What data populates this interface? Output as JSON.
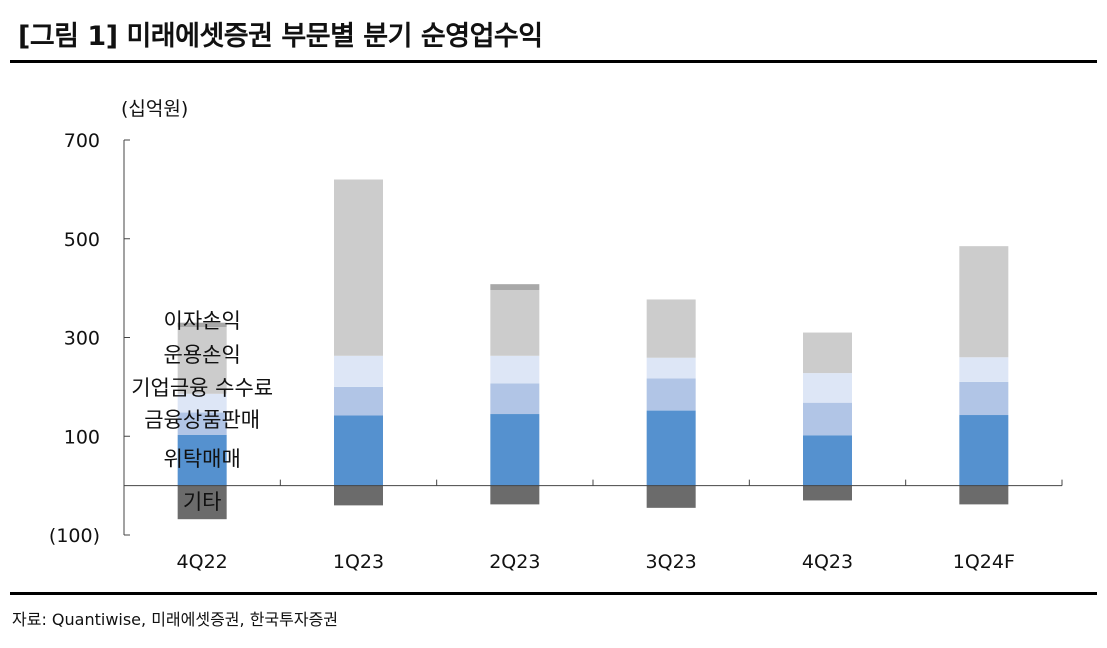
{
  "title": "[그림 1] 미래에셋증권 부문별 분기 순영업수익",
  "source": "자료: Quantiwise, 미래에셋증권, 한국투자증권",
  "chart_data": {
    "type": "bar",
    "stacked": true,
    "unit_label": "(십억원)",
    "categories": [
      "4Q22",
      "1Q23",
      "2Q23",
      "3Q23",
      "4Q23",
      "1Q24F"
    ],
    "yticks": [
      700,
      500,
      300,
      100,
      -100
    ],
    "ytick_labels": [
      "700",
      "500",
      "300",
      "100",
      "(100)"
    ],
    "ylim": [
      -100,
      700
    ],
    "grid": false,
    "legend_position": "inside first bar",
    "series": [
      {
        "name": "위탁매매",
        "color": "#5591cf",
        "values": [
          103,
          142,
          145,
          152,
          102,
          143
        ]
      },
      {
        "name": "금융상품판매",
        "color": "#b1c5e6",
        "values": [
          45,
          58,
          62,
          65,
          66,
          67
        ]
      },
      {
        "name": "기업금융 수수료",
        "color": "#dde6f6",
        "values": [
          38,
          63,
          56,
          42,
          60,
          50
        ]
      },
      {
        "name": "운용손익",
        "color": "#cccccc",
        "values": [
          135,
          357,
          133,
          118,
          82,
          225
        ]
      },
      {
        "name": "이자손익",
        "color": "#a8a8a8",
        "values": [
          9,
          0,
          12,
          0,
          0,
          0
        ]
      },
      {
        "name": "기타",
        "color": "#6b6b6b",
        "values": [
          -68,
          -40,
          -38,
          -45,
          -30,
          -38
        ]
      }
    ]
  }
}
